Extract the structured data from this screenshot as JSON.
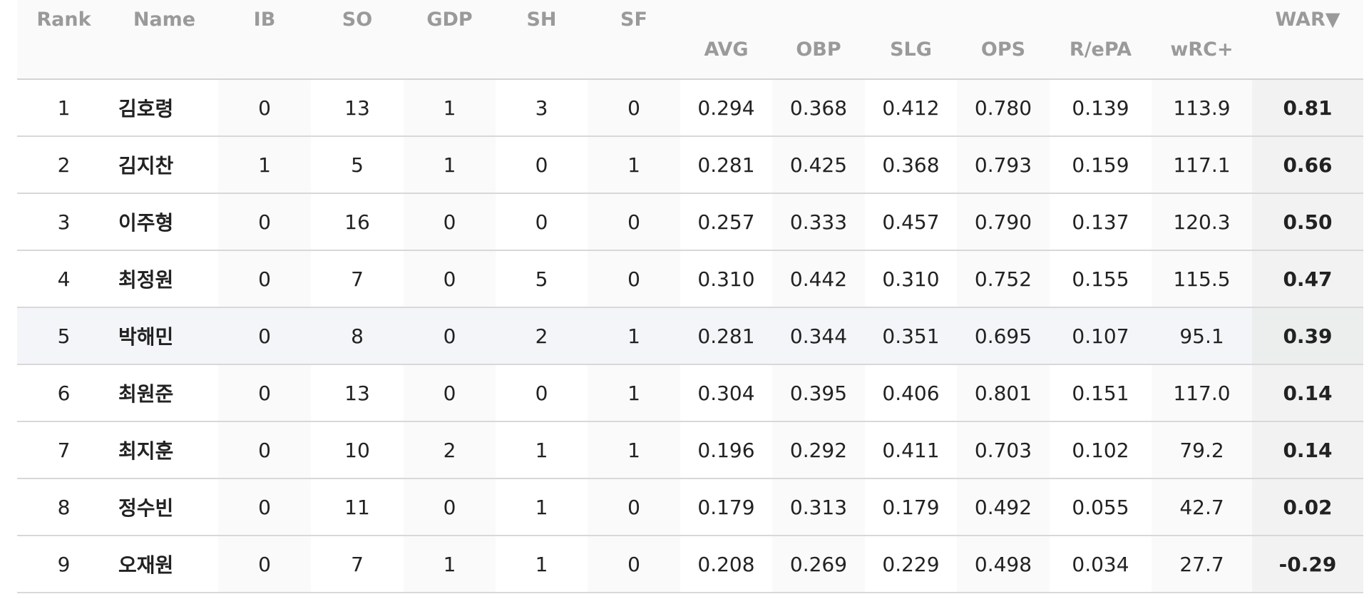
{
  "table": {
    "columns": [
      "Rank",
      "Name",
      "IB",
      "SO",
      "GDP",
      "SH",
      "SF",
      "AVG",
      "OBP",
      "SLG",
      "OPS",
      "R/ePA",
      "wRC+",
      "WAR▼"
    ],
    "rows": [
      [
        "1",
        "김호령",
        "0",
        "13",
        "1",
        "3",
        "0",
        "0.294",
        "0.368",
        "0.412",
        "0.780",
        "0.139",
        "113.9",
        "0.81"
      ],
      [
        "2",
        "김지찬",
        "1",
        "5",
        "1",
        "0",
        "1",
        "0.281",
        "0.425",
        "0.368",
        "0.793",
        "0.159",
        "117.1",
        "0.66"
      ],
      [
        "3",
        "이주형",
        "0",
        "16",
        "0",
        "0",
        "0",
        "0.257",
        "0.333",
        "0.457",
        "0.790",
        "0.137",
        "120.3",
        "0.50"
      ],
      [
        "4",
        "최정원",
        "0",
        "7",
        "0",
        "5",
        "0",
        "0.310",
        "0.442",
        "0.310",
        "0.752",
        "0.155",
        "115.5",
        "0.47"
      ],
      [
        "5",
        "박해민",
        "0",
        "8",
        "0",
        "2",
        "1",
        "0.281",
        "0.344",
        "0.351",
        "0.695",
        "0.107",
        "95.1",
        "0.39"
      ],
      [
        "6",
        "최원준",
        "0",
        "13",
        "0",
        "0",
        "1",
        "0.304",
        "0.395",
        "0.406",
        "0.801",
        "0.151",
        "117.0",
        "0.14"
      ],
      [
        "7",
        "최지훈",
        "0",
        "10",
        "2",
        "1",
        "1",
        "0.196",
        "0.292",
        "0.411",
        "0.703",
        "0.102",
        "79.2",
        "0.14"
      ],
      [
        "8",
        "정수빈",
        "0",
        "11",
        "0",
        "1",
        "0",
        "0.179",
        "0.313",
        "0.179",
        "0.492",
        "0.055",
        "42.7",
        "0.02"
      ],
      [
        "9",
        "오재원",
        "0",
        "7",
        "1",
        "1",
        "0",
        "0.208",
        "0.269",
        "0.229",
        "0.498",
        "0.034",
        "27.7",
        "-0.29"
      ]
    ]
  }
}
